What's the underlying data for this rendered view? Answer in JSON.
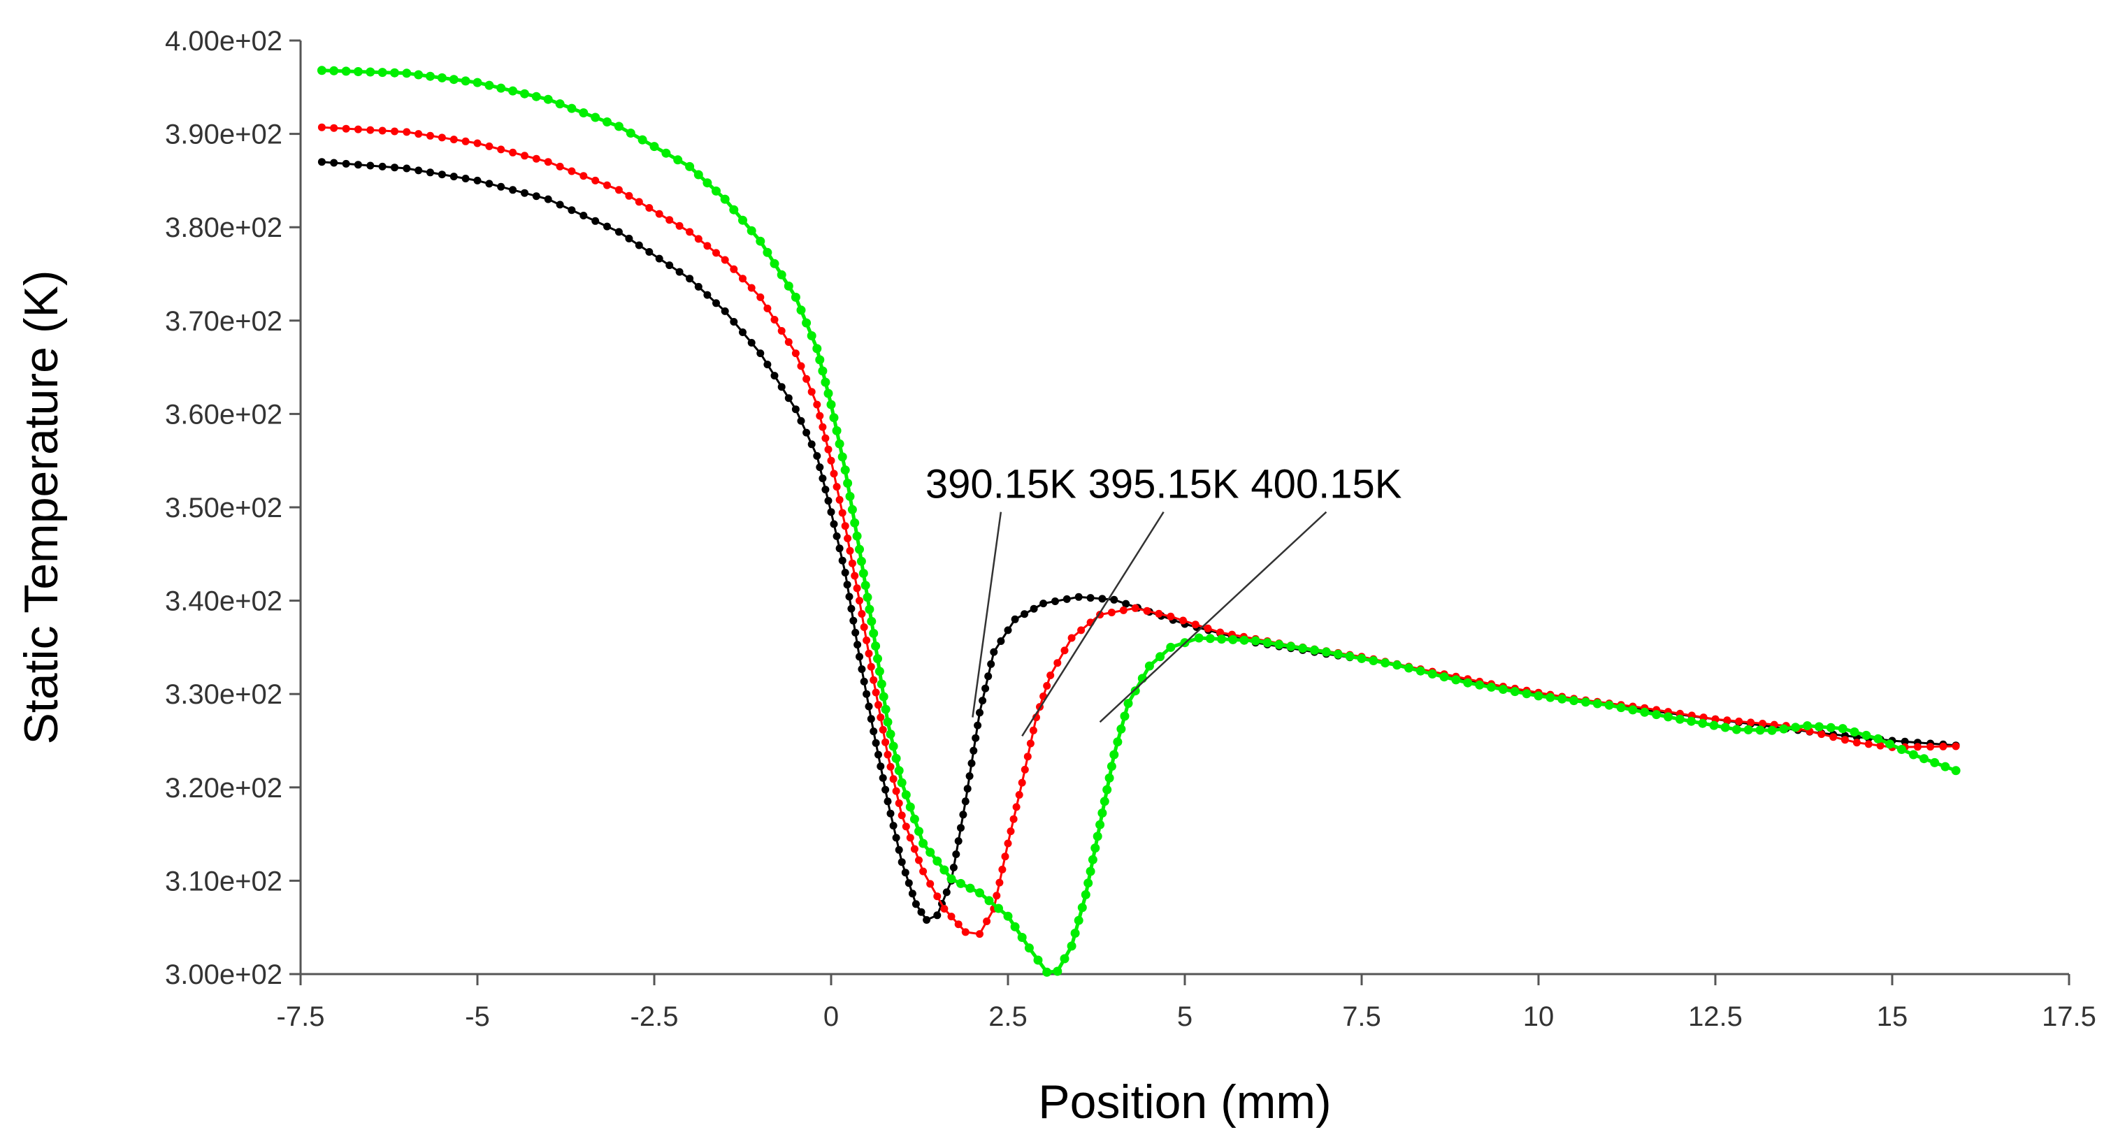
{
  "chart_data": {
    "type": "line",
    "title": "",
    "xlabel": "Position (mm)",
    "ylabel": "Static Temperature (K)",
    "xlim": [
      -7.5,
      17.5
    ],
    "ylim": [
      300,
      400
    ],
    "xticks": [
      -7.5,
      -5,
      -2.5,
      0,
      2.5,
      5,
      7.5,
      10,
      12.5,
      15,
      17.5
    ],
    "xtick_labels": [
      "-7.5",
      "-5",
      "-2.5",
      "0",
      "2.5",
      "5",
      "7.5",
      "10",
      "12.5",
      "15",
      "17.5"
    ],
    "yticks": [
      300,
      310,
      320,
      330,
      340,
      350,
      360,
      370,
      380,
      390,
      400
    ],
    "ytick_labels": [
      "3.00e+02",
      "3.10e+02",
      "3.20e+02",
      "3.30e+02",
      "3.40e+02",
      "3.50e+02",
      "3.60e+02",
      "3.70e+02",
      "3.80e+02",
      "3.90e+02",
      "4.00e+02"
    ],
    "grid": false,
    "series": [
      {
        "name": "390.15K",
        "color": "#000000",
        "points": [
          [
            -7.2,
            387
          ],
          [
            -6,
            386.3
          ],
          [
            -5,
            385
          ],
          [
            -4,
            383
          ],
          [
            -3,
            379.5
          ],
          [
            -2,
            374.5
          ],
          [
            -1.5,
            371
          ],
          [
            -1,
            366.5
          ],
          [
            -0.5,
            360.5
          ],
          [
            -0.2,
            355.5
          ],
          [
            0,
            349.5
          ],
          [
            0.2,
            343
          ],
          [
            0.4,
            334
          ],
          [
            0.6,
            326
          ],
          [
            0.8,
            318.5
          ],
          [
            1,
            312
          ],
          [
            1.2,
            307.5
          ],
          [
            1.35,
            305.8
          ],
          [
            1.5,
            306.3
          ],
          [
            1.7,
            310
          ],
          [
            1.9,
            318.5
          ],
          [
            2.1,
            328
          ],
          [
            2.3,
            334.5
          ],
          [
            2.6,
            338
          ],
          [
            3,
            339.7
          ],
          [
            3.5,
            340.4
          ],
          [
            4,
            340.1
          ],
          [
            4.5,
            338.8
          ],
          [
            5,
            337.5
          ],
          [
            6,
            335.5
          ],
          [
            7,
            334.3
          ],
          [
            8,
            333.2
          ],
          [
            9,
            331.5
          ],
          [
            10,
            330
          ],
          [
            11,
            328.8
          ],
          [
            12,
            327.8
          ],
          [
            13,
            326.8
          ],
          [
            14,
            325.8
          ],
          [
            15,
            325
          ],
          [
            15.9,
            324.5
          ]
        ]
      },
      {
        "name": "395.15K",
        "color": "#ff0000",
        "points": [
          [
            -7.2,
            390.7
          ],
          [
            -6,
            390.2
          ],
          [
            -5,
            389
          ],
          [
            -4,
            387
          ],
          [
            -3,
            384
          ],
          [
            -2,
            379.5
          ],
          [
            -1.5,
            376.5
          ],
          [
            -1,
            372.5
          ],
          [
            -0.5,
            366.5
          ],
          [
            -0.2,
            361
          ],
          [
            0,
            355
          ],
          [
            0.2,
            348
          ],
          [
            0.4,
            340
          ],
          [
            0.6,
            331.5
          ],
          [
            0.8,
            323.5
          ],
          [
            1,
            317
          ],
          [
            1.3,
            311
          ],
          [
            1.6,
            307
          ],
          [
            1.9,
            304.5
          ],
          [
            2.1,
            304.3
          ],
          [
            2.3,
            307
          ],
          [
            2.5,
            314
          ],
          [
            2.7,
            320.5
          ],
          [
            2.9,
            327.5
          ],
          [
            3.1,
            332
          ],
          [
            3.4,
            336
          ],
          [
            3.8,
            338.5
          ],
          [
            4.3,
            339.2
          ],
          [
            4.8,
            338.3
          ],
          [
            5.5,
            336.6
          ],
          [
            6.5,
            335.2
          ],
          [
            7.5,
            334
          ],
          [
            8.5,
            332.4
          ],
          [
            9.5,
            330.8
          ],
          [
            10.5,
            329.5
          ],
          [
            11.5,
            328.5
          ],
          [
            12.5,
            327.3
          ],
          [
            13.5,
            326.6
          ],
          [
            14.5,
            324.8
          ],
          [
            15,
            324.3
          ],
          [
            15.9,
            324.4
          ]
        ]
      },
      {
        "name": "400.15K",
        "color": "#00ee00",
        "points": [
          [
            -7.2,
            396.8
          ],
          [
            -6,
            396.5
          ],
          [
            -5,
            395.5
          ],
          [
            -4,
            393.7
          ],
          [
            -3,
            390.8
          ],
          [
            -2,
            386.5
          ],
          [
            -1.5,
            383
          ],
          [
            -1,
            378.5
          ],
          [
            -0.5,
            372.5
          ],
          [
            -0.2,
            367
          ],
          [
            0,
            361
          ],
          [
            0.2,
            354
          ],
          [
            0.4,
            345.5
          ],
          [
            0.6,
            336.5
          ],
          [
            0.8,
            327
          ],
          [
            1,
            320.5
          ],
          [
            1.3,
            314
          ],
          [
            1.7,
            310.2
          ],
          [
            2.1,
            308.7
          ],
          [
            2.5,
            306.2
          ],
          [
            2.8,
            302.8
          ],
          [
            3.05,
            300.2
          ],
          [
            3.2,
            300.3
          ],
          [
            3.4,
            303
          ],
          [
            3.6,
            308.5
          ],
          [
            3.8,
            316
          ],
          [
            4,
            323.5
          ],
          [
            4.2,
            329
          ],
          [
            4.5,
            333
          ],
          [
            4.8,
            335
          ],
          [
            5.2,
            336
          ],
          [
            6,
            335.7
          ],
          [
            7,
            334.5
          ],
          [
            8,
            333.1
          ],
          [
            9,
            331.2
          ],
          [
            10,
            329.8
          ],
          [
            11,
            328.8
          ],
          [
            12,
            327.3
          ],
          [
            12.8,
            326.2
          ],
          [
            13.3,
            326.1
          ],
          [
            13.8,
            326.6
          ],
          [
            14.3,
            326.3
          ],
          [
            14.8,
            325.2
          ],
          [
            15.3,
            323.5
          ],
          [
            15.9,
            321.8
          ]
        ]
      }
    ],
    "annotations": [
      {
        "text": "390.15K",
        "target_series": "390.15K",
        "target": [
          2.0,
          327.5
        ],
        "anchor": [
          2.4,
          349.5
        ]
      },
      {
        "text": "395.15K",
        "target_series": "395.15K",
        "target": [
          2.7,
          325.5
        ],
        "anchor": [
          4.7,
          349.5
        ]
      },
      {
        "text": "400.15K",
        "target_series": "400.15K",
        "target": [
          3.8,
          327
        ],
        "anchor": [
          7.0,
          349.5
        ]
      }
    ]
  }
}
